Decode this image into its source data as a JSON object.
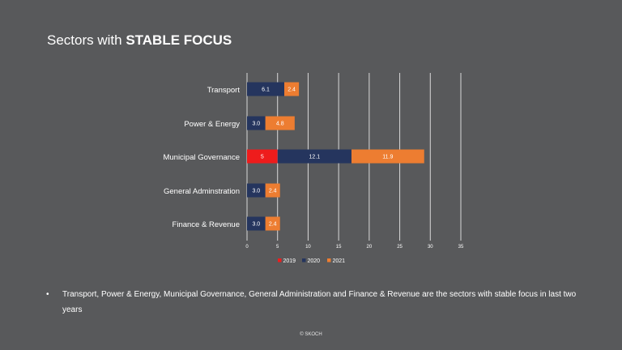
{
  "slide": {
    "title_prefix": "Sectors with ",
    "title_bold": "STABLE FOCUS",
    "bullet_symbol": "•",
    "bullet_text": "Transport, Power & Energy, Municipal Governance, General Administration and Finance & Revenue are the sectors with stable focus in last two years",
    "footer": "© SKOCH"
  },
  "chart_data": {
    "type": "bar",
    "orientation": "horizontal",
    "stacked": true,
    "categories": [
      "Transport",
      "Power & Energy",
      "Municipal Governance",
      "General Adminstration",
      "Finance & Revenue"
    ],
    "series": [
      {
        "name": "2019",
        "color": "#ee1c1c",
        "values": [
          null,
          null,
          5,
          null,
          null
        ],
        "labels": [
          "",
          "",
          "5",
          "",
          ""
        ]
      },
      {
        "name": "2020",
        "color": "#25355e",
        "values": [
          6.1,
          3.0,
          12.1,
          3.0,
          3.0
        ],
        "labels": [
          "6.1",
          "3.0",
          "12.1",
          "3.0",
          "3.0"
        ]
      },
      {
        "name": "2021",
        "color": "#ed7d31",
        "values": [
          2.4,
          4.8,
          11.9,
          2.4,
          2.4
        ],
        "labels": [
          "2.4",
          "4.8",
          "11.9",
          "2.4",
          "2.4"
        ]
      }
    ],
    "xlim": [
      0,
      35
    ],
    "xticks": [
      "0",
      "5",
      "10",
      "15",
      "20",
      "25",
      "30",
      "35"
    ],
    "grid": "vertical",
    "legend": "bottom",
    "colors": {
      "gridline": "#d9d9d9",
      "label_text": "#ffffff",
      "axis_text": "#ffffff"
    }
  }
}
